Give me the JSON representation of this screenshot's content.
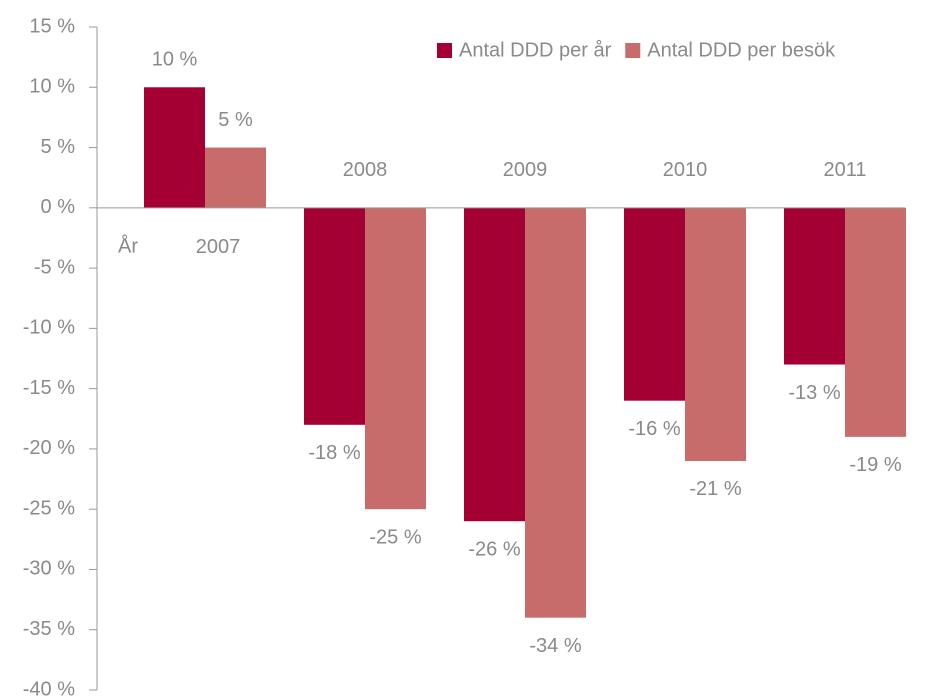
{
  "chart_data": {
    "type": "bar",
    "categories": [
      "2007",
      "2008",
      "2009",
      "2010",
      "2011"
    ],
    "x_axis_label": "År",
    "series": [
      {
        "name": "Antal DDD per år",
        "color": "#a50034",
        "values": [
          10,
          -18,
          -26,
          -16,
          -13
        ],
        "value_labels": [
          "10 %",
          "-18 %",
          "-26 %",
          "-16 %",
          "-13 %"
        ]
      },
      {
        "name": "Antal DDD per besök",
        "color": "#c76b6b",
        "values": [
          5,
          -25,
          -34,
          -21,
          -19
        ],
        "value_labels": [
          "5 %",
          "-25 %",
          "-34 %",
          "-21 %",
          "-19 %"
        ]
      }
    ],
    "ylim": [
      -40,
      15
    ],
    "yticks": [
      {
        "value": 15,
        "label": "15 %"
      },
      {
        "value": 10,
        "label": "10 %"
      },
      {
        "value": 5,
        "label": "5 %"
      },
      {
        "value": 0,
        "label": "0 %"
      },
      {
        "value": -5,
        "label": "-5 %"
      },
      {
        "value": -10,
        "label": "-10 %"
      },
      {
        "value": -15,
        "label": "-15 %"
      },
      {
        "value": -20,
        "label": "-20 %"
      },
      {
        "value": -25,
        "label": "-25 %"
      },
      {
        "value": -30,
        "label": "-30 %"
      },
      {
        "value": -35,
        "label": "-35 %"
      },
      {
        "value": -40,
        "label": "-40 %"
      }
    ],
    "grid": false,
    "legend": "upper right"
  }
}
